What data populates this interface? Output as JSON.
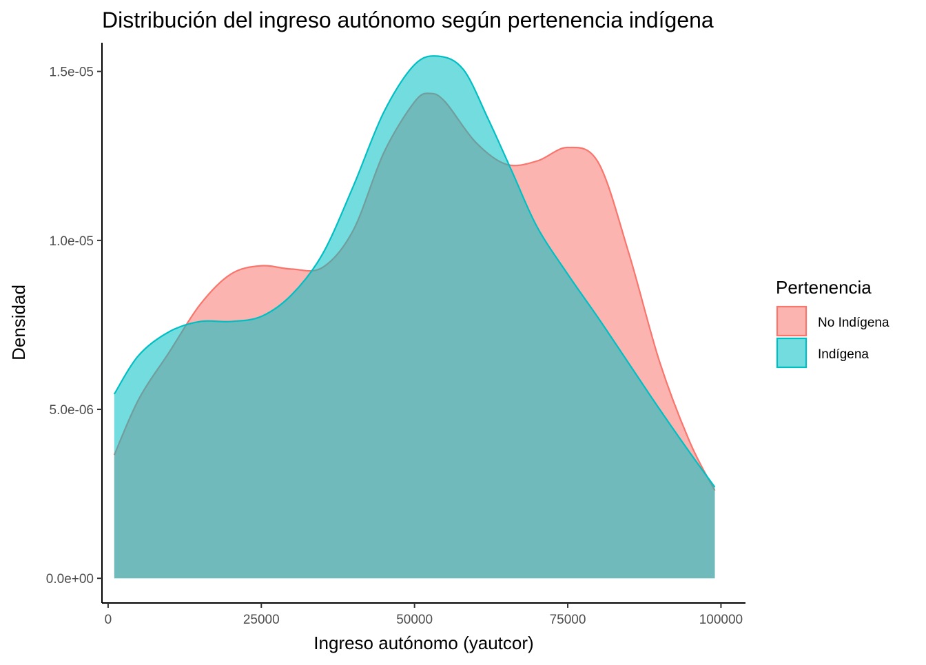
{
  "chart_data": {
    "type": "area",
    "title": "Distribución del ingreso autónomo según pertenencia indígena",
    "xlabel": "Ingreso autónomo (yautcor)",
    "ylabel": "Densidad",
    "xlim": [
      -1000,
      104000
    ],
    "ylim": [
      -7.3e-07,
      1.585e-05
    ],
    "x_ticks": [
      0,
      25000,
      50000,
      75000,
      100000
    ],
    "x_tick_labels": [
      "0",
      "25000",
      "50000",
      "75000",
      "100000"
    ],
    "y_ticks": [
      0,
      5e-06,
      1e-05,
      1.5e-05
    ],
    "y_tick_labels": [
      "0.0e+00",
      "5.0e-06",
      "1.0e-05",
      "1.5e-05"
    ],
    "grid": false,
    "legend_position": "right",
    "legend_title": "Pertenencia",
    "series": [
      {
        "name": "No Indígena",
        "color": "#F8766D",
        "x": [
          1000,
          5000,
          10000,
          15000,
          20000,
          25000,
          30000,
          35000,
          40000,
          45000,
          50000,
          52500,
          55000,
          60000,
          65000,
          70000,
          75000,
          80000,
          85000,
          90000,
          95000,
          99000
        ],
        "y": [
          3.65e-06,
          5.3e-06,
          6.7e-06,
          8.1e-06,
          9e-06,
          9.25e-06,
          9.15e-06,
          9.2e-06,
          1.03e-05,
          1.26e-05,
          1.41e-05,
          1.435e-05,
          1.41e-05,
          1.29e-05,
          1.225e-05,
          1.235e-05,
          1.275e-05,
          1.23e-05,
          9.6e-06,
          6.4e-06,
          4e-06,
          2.6e-06
        ]
      },
      {
        "name": "Indígena",
        "color": "#00BFC4",
        "x": [
          1000,
          5000,
          10000,
          15000,
          20000,
          25000,
          30000,
          35000,
          40000,
          45000,
          50000,
          54000,
          58000,
          62000,
          66000,
          70000,
          75000,
          80000,
          85000,
          90000,
          95000,
          99000
        ],
        "y": [
          5.45e-06,
          6.6e-06,
          7.3e-06,
          7.6e-06,
          7.6e-06,
          7.75e-06,
          8.4e-06,
          9.6e-06,
          1.16e-05,
          1.38e-05,
          1.52e-05,
          1.545e-05,
          1.505e-05,
          1.36e-05,
          1.2e-05,
          1.04e-05,
          9e-06,
          7.7e-06,
          6.35e-06,
          5e-06,
          3.7e-06,
          2.7e-06
        ]
      }
    ]
  }
}
